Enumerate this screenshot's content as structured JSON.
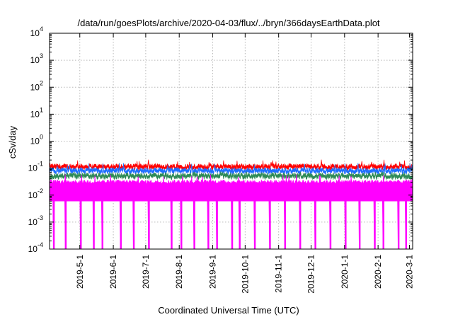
{
  "chart_data": {
    "type": "area",
    "title": "/data/run/goesPlots/archive/2020-04-03/flux/../bryn/366daysEarthData.plot",
    "xlabel": "Coordinated Universal Time (UTC)",
    "ylabel": "cSv/day",
    "yscale": "log",
    "ylim": [
      0.0001,
      10000
    ],
    "xlim": [
      "2019-04-03",
      "2020-03-04"
    ],
    "grid": true,
    "x_ticks": [
      "2019-5-1",
      "2019-6-1",
      "2019-7-1",
      "2019-8-1",
      "2019-9-1",
      "2019-10-1",
      "2019-11-1",
      "2019-12-1",
      "2020-1-1",
      "2020-2-1",
      "2020-3-1"
    ],
    "y_ticks": [
      {
        "value": 0.0001,
        "base": "10",
        "exp": "-4"
      },
      {
        "value": 0.001,
        "base": "10",
        "exp": "-3"
      },
      {
        "value": 0.01,
        "base": "10",
        "exp": "-2"
      },
      {
        "value": 0.1,
        "base": "10",
        "exp": "-1"
      },
      {
        "value": 1,
        "base": "10",
        "exp": "0"
      },
      {
        "value": 10,
        "base": "10",
        "exp": "1"
      },
      {
        "value": 100,
        "base": "10",
        "exp": "2"
      },
      {
        "value": 1000,
        "base": "10",
        "exp": "3"
      },
      {
        "value": 10000,
        "base": "10",
        "exp": "4"
      }
    ],
    "series": [
      {
        "color": "#ff0000",
        "typical": 0.12,
        "min": 0.1,
        "max": 0.21
      },
      {
        "color": "#1f6fff",
        "typical": 0.085,
        "min": 0.06,
        "max": 0.16
      },
      {
        "color": "#2e8b57",
        "typical": 0.055,
        "min": 0.045,
        "max": 0.075
      },
      {
        "color": "#ff00ff",
        "typical": 0.03,
        "min": 0.0001,
        "max": 0.06,
        "floor": 0.006
      }
    ],
    "dropouts": [
      "2019-04-07",
      "2019-04-18",
      "2019-05-02",
      "2019-05-14",
      "2019-05-22",
      "2019-06-08",
      "2019-06-20",
      "2019-07-04",
      "2019-07-25",
      "2019-08-03",
      "2019-08-15",
      "2019-08-28",
      "2019-09-05",
      "2019-09-19",
      "2019-09-26",
      "2019-10-10",
      "2019-10-24",
      "2019-11-07",
      "2019-11-21",
      "2019-12-05",
      "2019-12-19",
      "2020-01-02",
      "2020-01-15",
      "2020-01-29",
      "2020-02-06",
      "2020-02-20",
      "2020-02-27"
    ]
  }
}
